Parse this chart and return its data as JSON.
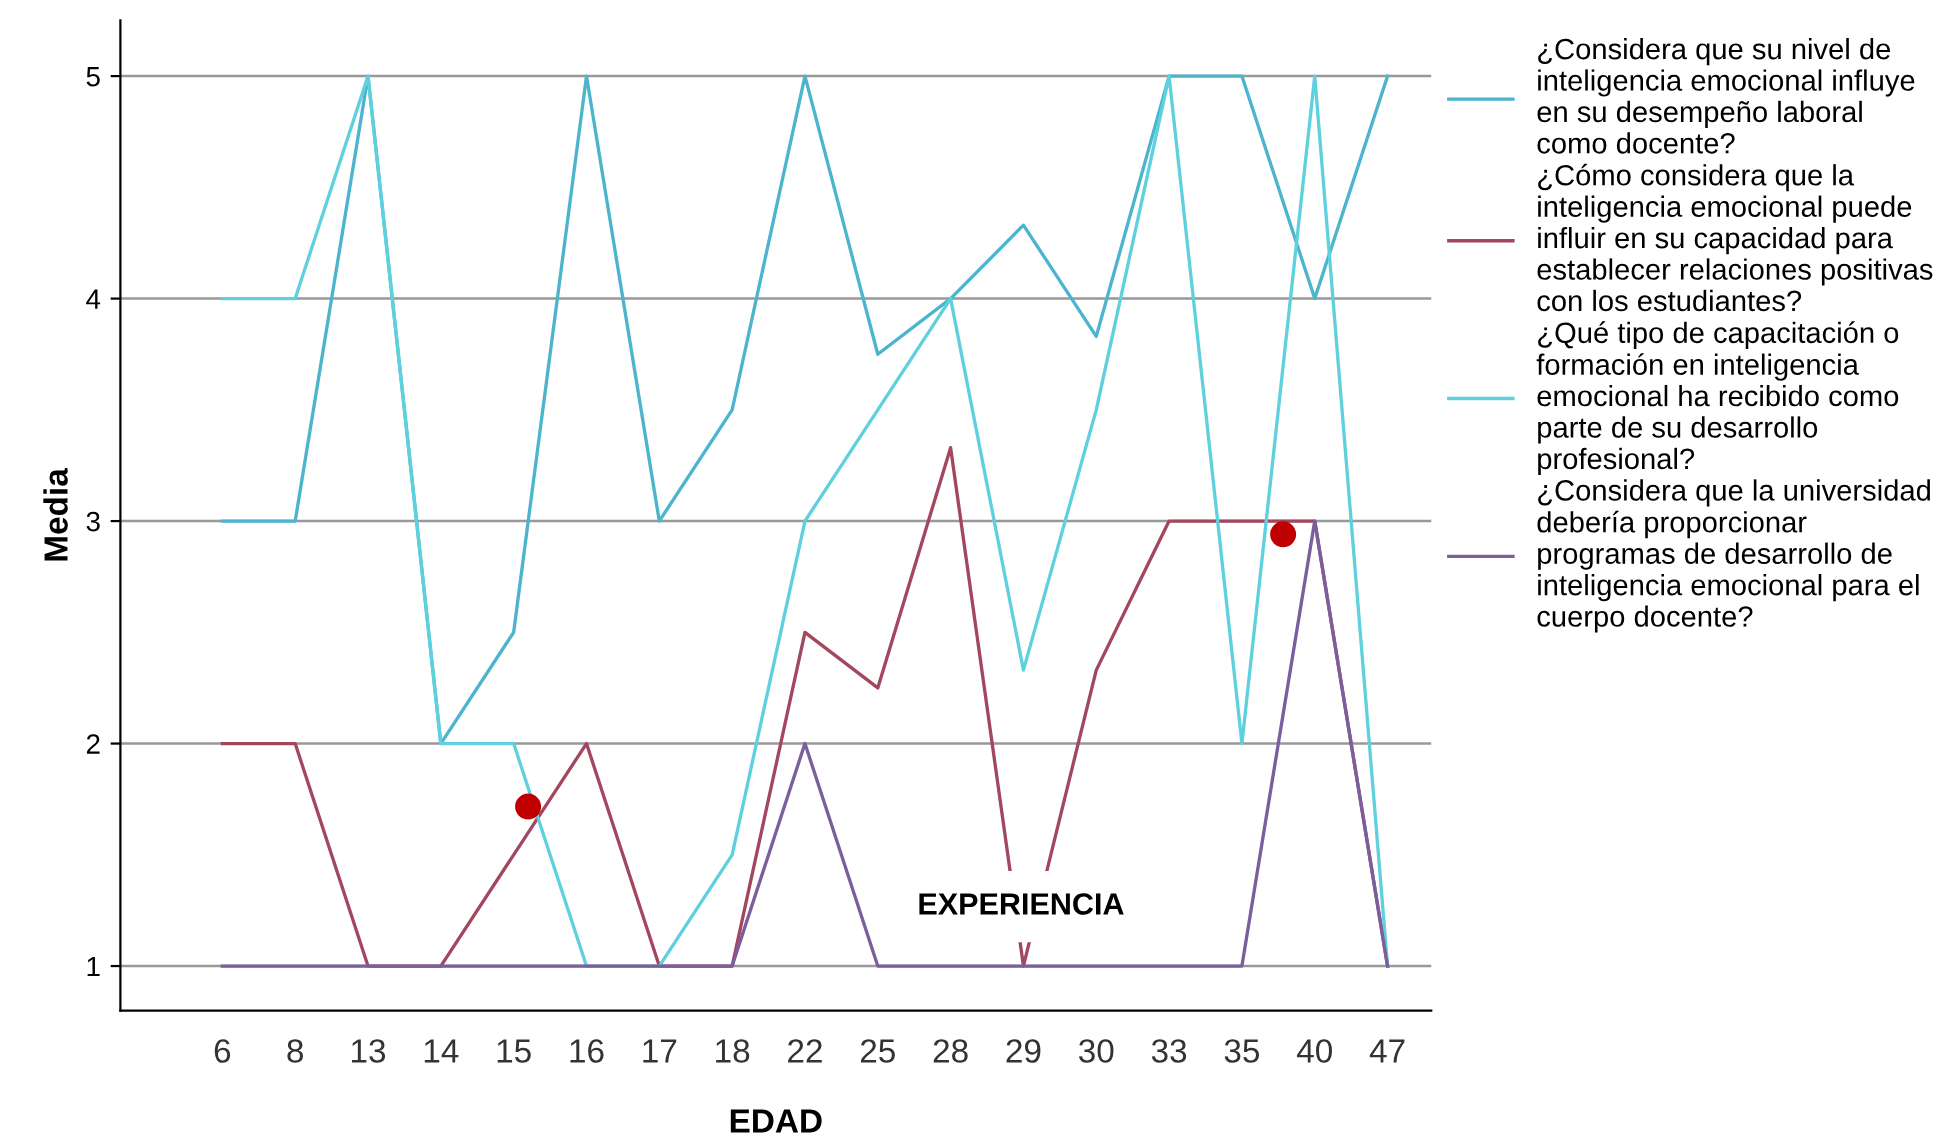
{
  "chart_data": {
    "type": "line",
    "xlabel": "EDAD",
    "ylabel": "Media",
    "categories": [
      "6",
      "8",
      "13",
      "14",
      "15",
      "16",
      "17",
      "18",
      "22",
      "25",
      "28",
      "29",
      "30",
      "33",
      "35",
      "40",
      "47"
    ],
    "series": [
      {
        "name": "¿Considera que su nivel de\ninteligencia emocional influye\nen su desempeño laboral\ncomo docente?",
        "color": "#4cb4cc",
        "values": [
          3,
          3,
          5,
          2,
          2.5,
          5,
          3,
          3.5,
          5,
          3.75,
          4,
          4.33,
          3.83,
          5,
          5,
          4,
          5
        ]
      },
      {
        "name": "¿Cómo considera que la\ninteligencia emocional puede\ninfluir en su capacidad para\nestablecer relaciones positivas\ncon los estudiantes?",
        "color": "#a3475f",
        "values": [
          2,
          2,
          1,
          1,
          1.5,
          2,
          1,
          1,
          2.5,
          2.25,
          3.33,
          1,
          2.33,
          3,
          3,
          3,
          1
        ]
      },
      {
        "name": "¿Qué tipo de capacitación o\nformación en inteligencia\nemocional ha recibido como\nparte de su desarrollo\nprofesional?",
        "color": "#5fd0de",
        "values": [
          4,
          4,
          5,
          2,
          2,
          1,
          1,
          1.5,
          3,
          3.5,
          4,
          2.33,
          3.5,
          5,
          2,
          5,
          1
        ]
      },
      {
        "name": "¿Considera que la universidad\ndebería proporcionar\nprogramas de desarrollo de\ninteligencia emocional para el\ncuerpo docente?",
        "color": "#7b5e9e",
        "values": [
          1,
          1,
          1,
          1,
          1,
          1,
          1,
          1,
          2,
          1,
          1,
          1,
          1,
          1,
          1,
          3,
          1
        ]
      }
    ],
    "ylim": [
      0.8,
      5.25
    ],
    "yticks": [
      1,
      2,
      3,
      4,
      5
    ],
    "grid": "y",
    "legend": "right",
    "marker": "none",
    "line_style": "solid",
    "annotations": [
      "EXPERIENCIA"
    ]
  }
}
